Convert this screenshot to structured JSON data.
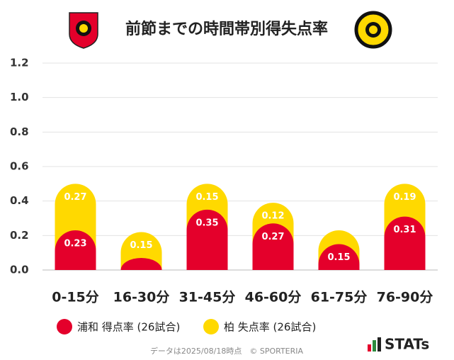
{
  "chart_data": {
    "type": "bar",
    "stacked": true,
    "title": "前節までの時間帯別得失点率",
    "categories": [
      "0-15分",
      "16-30分",
      "31-45分",
      "46-60分",
      "61-75分",
      "76-90分"
    ],
    "series": [
      {
        "name": "浦和 得点率 (26試合)",
        "color": "#e4002b",
        "values": [
          0.23,
          0.07,
          0.35,
          0.27,
          0.15,
          0.31
        ]
      },
      {
        "name": "柏 失点率 (26試合)",
        "color": "#ffd900",
        "values": [
          0.27,
          0.15,
          0.15,
          0.12,
          0.08,
          0.19
        ]
      }
    ],
    "ylim": [
      0,
      1.2
    ],
    "yticks": [
      {
        "value": 0,
        "label": "0.0"
      },
      0.2,
      0.4,
      0.6,
      0.8,
      {
        "value": 1,
        "label": "1.0"
      },
      1.2
    ],
    "grid": true,
    "footer": {
      "note": "データは2025/08/18時点　© SPORTERIA",
      "brand": "STATs"
    }
  }
}
